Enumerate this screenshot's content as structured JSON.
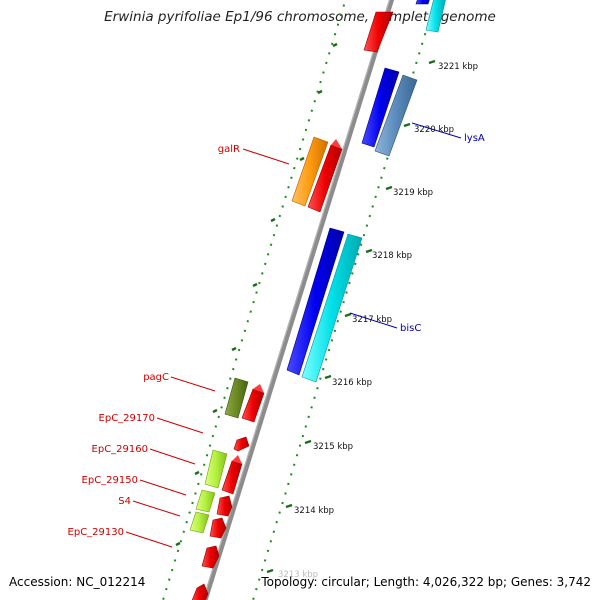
{
  "title": "Erwinia pyrifoliae Ep1/96 chromosome, complete genome",
  "footer": {
    "accession_label": "Accession: NC_012214",
    "topology_label": "Topology: circular; Length: 4,026,322 bp; Genes: 3,742"
  },
  "colors": {
    "backbone": "#8c8c8c",
    "tick_dots": "#1f8a1f",
    "tick_major": "#1a6e1a",
    "feature_label_red": "#cc0000",
    "feature_label_blue": "#0000aa",
    "scale_label": "#111111"
  },
  "scale": {
    "unit": "kbp",
    "labels": [
      "3221 kbp",
      "3220 kbp",
      "3219 kbp",
      "3218 kbp",
      "3217 kbp",
      "3216 kbp",
      "3215 kbp",
      "3214 kbp",
      "3213 kbp"
    ]
  },
  "features": [
    {
      "label": "galR",
      "color_name": "orange"
    },
    {
      "label": "pagC",
      "color_name": "olive"
    },
    {
      "label": "EpC_29170",
      "color_name": "light-green"
    },
    {
      "label": "EpC_29160",
      "color_name": "light-green"
    },
    {
      "label": "EpC_29150",
      "color_name": "light-green"
    },
    {
      "label": "S4",
      "color_name": "light-green"
    },
    {
      "label": "EpC_29130",
      "color_name": "light-green"
    },
    {
      "label": "lysA",
      "color_name": "steel-blue"
    },
    {
      "label": "bisC",
      "color_name": "cyan"
    }
  ]
}
